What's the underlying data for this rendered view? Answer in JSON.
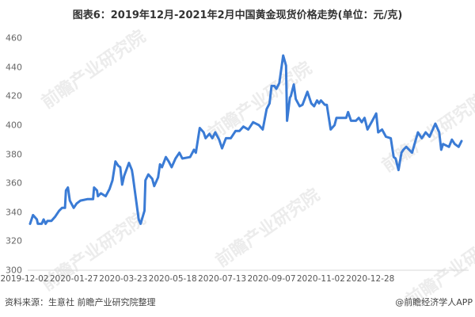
{
  "title": "图表6：2019年12月-2021年2月中国黄金现货价格走势(单位：元/克)",
  "source": "资料来源：生意社 前瞻产业研究院整理",
  "credit": "@前瞻经济学人APP",
  "watermark": "前瞻产业研究院",
  "colors": {
    "line": "#3a7bd5",
    "axis": "#d9d9d9"
  },
  "chart_data": {
    "type": "line",
    "title": "图表6：2019年12月-2021年2月中国黄金现货价格走势(单位：元/克)",
    "xlabel": "",
    "ylabel": "",
    "ylim": [
      300,
      460
    ],
    "yticks": [
      300,
      320,
      340,
      360,
      380,
      400,
      420,
      440,
      460
    ],
    "xticks": [
      "2019-12-02",
      "2020-01-27",
      "2020-03-23",
      "2020-05-18",
      "2020-07-13",
      "2020-09-07",
      "2020-11-02",
      "2020-12-28"
    ],
    "grid": false,
    "legend": "none",
    "x": [
      "2019-12-02",
      "2019-12-05",
      "2019-12-09",
      "2019-12-10",
      "2019-12-14",
      "2019-12-16",
      "2019-12-18",
      "2019-12-20",
      "2019-12-24",
      "2019-12-28",
      "2020-01-01",
      "2020-01-04",
      "2020-01-07",
      "2020-01-08",
      "2020-01-10",
      "2020-01-12",
      "2020-01-16",
      "2020-01-19",
      "2020-01-23",
      "2020-01-30",
      "2020-02-05",
      "2020-02-06",
      "2020-02-09",
      "2020-02-10",
      "2020-02-13",
      "2020-02-18",
      "2020-02-22",
      "2020-02-25",
      "2020-02-28",
      "2020-03-02",
      "2020-03-04",
      "2020-03-06",
      "2020-03-08",
      "2020-03-13",
      "2020-03-16",
      "2020-03-17",
      "2020-03-20",
      "2020-03-23",
      "2020-03-25",
      "2020-03-29",
      "2020-03-30",
      "2020-04-02",
      "2020-04-06",
      "2020-04-08",
      "2020-04-12",
      "2020-04-14",
      "2020-04-16",
      "2020-04-20",
      "2020-04-23",
      "2020-04-26",
      "2020-04-30",
      "2020-05-04",
      "2020-05-07",
      "2020-05-15",
      "2020-05-19",
      "2020-05-21",
      "2020-05-25",
      "2020-05-29",
      "2020-05-31",
      "2020-06-04",
      "2020-06-07",
      "2020-06-10",
      "2020-06-14",
      "2020-06-17",
      "2020-06-21",
      "2020-06-26",
      "2020-07-01",
      "2020-07-05",
      "2020-07-09",
      "2020-07-14",
      "2020-07-19",
      "2020-07-25",
      "2020-07-29",
      "2020-08-02",
      "2020-08-05",
      "2020-08-07",
      "2020-08-10",
      "2020-08-12",
      "2020-08-15",
      "2020-08-19",
      "2020-08-22",
      "2020-08-23",
      "2020-08-26",
      "2020-08-27",
      "2020-08-30",
      "2020-09-01",
      "2020-09-05",
      "2020-09-08",
      "2020-09-13",
      "2020-09-17",
      "2020-09-20",
      "2020-09-23",
      "2020-09-25",
      "2020-09-27",
      "2020-10-01",
      "2020-10-03",
      "2020-10-07",
      "2020-10-11",
      "2020-10-13",
      "2020-10-23",
      "2020-10-25",
      "2020-10-28",
      "2020-11-02",
      "2020-11-05",
      "2020-11-08",
      "2020-11-11",
      "2020-11-14",
      "2020-11-19",
      "2020-11-23",
      "2020-11-25",
      "2020-11-29",
      "2020-12-03",
      "2020-12-08",
      "2020-12-11",
      "2020-12-13",
      "2020-12-16",
      "2020-12-19",
      "2020-12-21",
      "2020-12-24",
      "2020-12-30",
      "2021-01-05",
      "2021-01-09",
      "2021-01-13",
      "2021-01-17",
      "2021-01-23",
      "2021-01-27",
      "2021-01-29",
      "2021-01-31",
      "2021-02-06",
      "2021-02-09",
      "2021-02-12",
      "2021-02-16",
      "2021-02-19"
    ],
    "series": [
      {
        "values": [
          332,
          338,
          335,
          332,
          332,
          335,
          332,
          334,
          334,
          337,
          341,
          343,
          343,
          355,
          357,
          348,
          343,
          346,
          348,
          349,
          349,
          357,
          355,
          351,
          353,
          351,
          356,
          362,
          375,
          372,
          371,
          359,
          365,
          374,
          369,
          365,
          350,
          335,
          332,
          341,
          362,
          366,
          363,
          358,
          364,
          373,
          371,
          378,
          375,
          371,
          377,
          381,
          377,
          378,
          383,
          381,
          398,
          395,
          391,
          394,
          391,
          395,
          390,
          384,
          391,
          391,
          396,
          396,
          399,
          397,
          402,
          400,
          397,
          411,
          415,
          427,
          427,
          425,
          429,
          448,
          441,
          403,
          419,
          420,
          428,
          418,
          413,
          414,
          423,
          415,
          413,
          417,
          415,
          417,
          414,
          414,
          397,
          400,
          405,
          405,
          409,
          403,
          403,
          405,
          402,
          405,
          397,
          403,
          408,
          395,
          397,
          392,
          391,
          378,
          377,
          369,
          381,
          383,
          385,
          381,
          395,
          391,
          395,
          392,
          401,
          395,
          383,
          387,
          385,
          390,
          387,
          385,
          389
        ]
      }
    ]
  }
}
